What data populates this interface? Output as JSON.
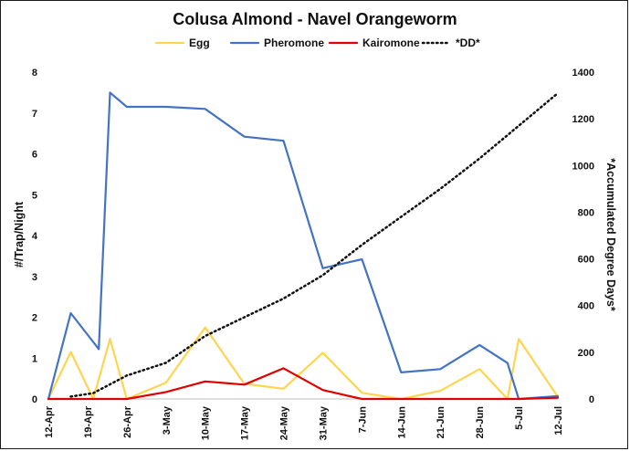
{
  "chart_data": {
    "type": "line",
    "title": "Colusa Almond - Navel Orangeworm",
    "ylabel": "#/Trap/Night",
    "y2label": "*Accumulated Degree Days*",
    "ylim": [
      0,
      8
    ],
    "y2lim": [
      0,
      1400
    ],
    "yticks": [
      "0",
      "1",
      "2",
      "3",
      "4",
      "5",
      "6",
      "7",
      "8"
    ],
    "y2ticks": [
      "0",
      "200",
      "400",
      "600",
      "800",
      "1000",
      "1200",
      "1400"
    ],
    "xlim": [
      "2019-04-12",
      "2019-07-12"
    ],
    "xticks": [
      {
        "date": "2019-04-12",
        "label": "12-Apr"
      },
      {
        "date": "2019-04-19",
        "label": "19-Apr"
      },
      {
        "date": "2019-04-26",
        "label": "26-Apr"
      },
      {
        "date": "2019-05-03",
        "label": "3-May"
      },
      {
        "date": "2019-05-10",
        "label": "10-May"
      },
      {
        "date": "2019-05-17",
        "label": "17-May"
      },
      {
        "date": "2019-05-24",
        "label": "24-May"
      },
      {
        "date": "2019-05-31",
        "label": "31-May"
      },
      {
        "date": "2019-06-07",
        "label": "7-Jun"
      },
      {
        "date": "2019-06-14",
        "label": "14-Jun"
      },
      {
        "date": "2019-06-21",
        "label": "21-Jun"
      },
      {
        "date": "2019-06-28",
        "label": "28-Jun"
      },
      {
        "date": "2019-07-05",
        "label": "5-Jul"
      },
      {
        "date": "2019-07-12",
        "label": "12-Jul"
      }
    ],
    "legend_position": "top",
    "grid": false,
    "series": [
      {
        "name": "Egg",
        "color": "#FFD54F",
        "style": "solid",
        "axis": "left",
        "x": [
          "2019-04-12",
          "2019-04-16",
          "2019-04-20",
          "2019-04-23",
          "2019-04-26",
          "2019-05-03",
          "2019-05-10",
          "2019-05-17",
          "2019-05-24",
          "2019-05-31",
          "2019-06-07",
          "2019-06-14",
          "2019-06-21",
          "2019-06-28",
          "2019-07-03",
          "2019-07-05",
          "2019-07-12"
        ],
        "y": [
          0,
          1.15,
          0,
          1.47,
          0,
          0.4,
          1.75,
          0.37,
          0.25,
          1.13,
          0.15,
          0,
          0.2,
          0.73,
          0,
          1.47,
          0.05
        ]
      },
      {
        "name": "Pheromone",
        "color": "#4472C4",
        "style": "solid",
        "axis": "left",
        "x": [
          "2019-04-12",
          "2019-04-16",
          "2019-04-21",
          "2019-04-23",
          "2019-04-26",
          "2019-05-03",
          "2019-05-10",
          "2019-05-17",
          "2019-05-24",
          "2019-05-31",
          "2019-06-07",
          "2019-06-14",
          "2019-06-21",
          "2019-06-28",
          "2019-07-03",
          "2019-07-05",
          "2019-07-12"
        ],
        "y": [
          0,
          2.1,
          1.22,
          7.5,
          7.15,
          7.15,
          7.1,
          6.42,
          6.32,
          3.2,
          3.42,
          0.65,
          0.73,
          1.32,
          0.88,
          0,
          0.07
        ]
      },
      {
        "name": "Kairomone",
        "color": "#E00000",
        "style": "solid",
        "axis": "left",
        "x": [
          "2019-04-12",
          "2019-04-19",
          "2019-04-26",
          "2019-05-03",
          "2019-05-10",
          "2019-05-17",
          "2019-05-24",
          "2019-05-31",
          "2019-06-07",
          "2019-06-14",
          "2019-06-21",
          "2019-06-28",
          "2019-07-05",
          "2019-07-12"
        ],
        "y": [
          0,
          0,
          0,
          0.17,
          0.43,
          0.35,
          0.75,
          0.22,
          0,
          0,
          0,
          0,
          0,
          0.03
        ]
      },
      {
        "name": "*DD*",
        "color": "#111111",
        "style": "dotted",
        "axis": "right",
        "x": [
          "2019-04-16",
          "2019-04-20",
          "2019-04-26",
          "2019-05-03",
          "2019-05-10",
          "2019-05-17",
          "2019-05-24",
          "2019-05-31",
          "2019-06-07",
          "2019-06-14",
          "2019-06-21",
          "2019-06-28",
          "2019-07-05",
          "2019-07-12"
        ],
        "y": [
          10,
          25,
          100,
          155,
          270,
          350,
          430,
          530,
          660,
          780,
          900,
          1030,
          1170,
          1310
        ]
      }
    ]
  }
}
